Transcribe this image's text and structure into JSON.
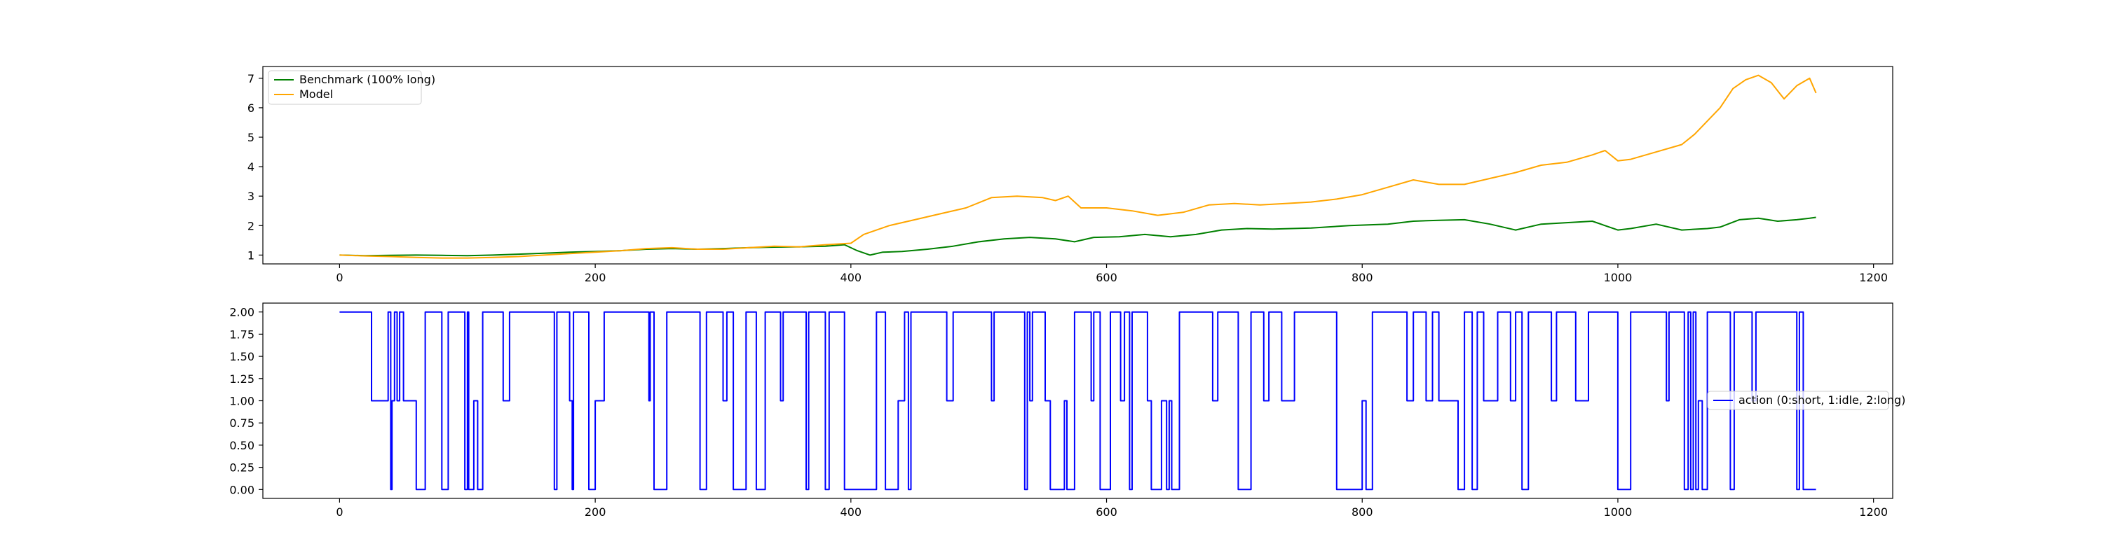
{
  "chart_data": [
    {
      "type": "line",
      "title": "",
      "xlabel": "",
      "ylabel": "",
      "xlim": [
        -60,
        1215
      ],
      "ylim": [
        0.7,
        7.4
      ],
      "xticks": [
        0,
        200,
        400,
        600,
        800,
        1000,
        1200
      ],
      "yticks": [
        1,
        2,
        3,
        4,
        5,
        6,
        7
      ],
      "grid": false,
      "legend_position": "top-left",
      "series": [
        {
          "name": "Benchmark (100% long)",
          "color": "#008000",
          "points": [
            [
              0,
              1.0
            ],
            [
              20,
              0.98
            ],
            [
              40,
              0.99
            ],
            [
              60,
              1.0
            ],
            [
              80,
              0.99
            ],
            [
              100,
              0.98
            ],
            [
              120,
              1.0
            ],
            [
              140,
              1.03
            ],
            [
              160,
              1.06
            ],
            [
              180,
              1.1
            ],
            [
              200,
              1.12
            ],
            [
              220,
              1.15
            ],
            [
              240,
              1.2
            ],
            [
              260,
              1.22
            ],
            [
              280,
              1.2
            ],
            [
              300,
              1.22
            ],
            [
              320,
              1.25
            ],
            [
              340,
              1.27
            ],
            [
              360,
              1.28
            ],
            [
              380,
              1.3
            ],
            [
              395,
              1.35
            ],
            [
              405,
              1.15
            ],
            [
              415,
              1.0
            ],
            [
              425,
              1.1
            ],
            [
              440,
              1.12
            ],
            [
              460,
              1.2
            ],
            [
              480,
              1.3
            ],
            [
              500,
              1.45
            ],
            [
              520,
              1.55
            ],
            [
              540,
              1.6
            ],
            [
              560,
              1.55
            ],
            [
              575,
              1.45
            ],
            [
              590,
              1.6
            ],
            [
              610,
              1.62
            ],
            [
              630,
              1.7
            ],
            [
              650,
              1.62
            ],
            [
              670,
              1.7
            ],
            [
              690,
              1.85
            ],
            [
              710,
              1.9
            ],
            [
              730,
              1.88
            ],
            [
              760,
              1.92
            ],
            [
              790,
              2.0
            ],
            [
              820,
              2.05
            ],
            [
              840,
              2.15
            ],
            [
              860,
              2.18
            ],
            [
              880,
              2.2
            ],
            [
              900,
              2.05
            ],
            [
              920,
              1.85
            ],
            [
              940,
              2.05
            ],
            [
              960,
              2.1
            ],
            [
              980,
              2.15
            ],
            [
              1000,
              1.85
            ],
            [
              1010,
              1.9
            ],
            [
              1030,
              2.05
            ],
            [
              1050,
              1.85
            ],
            [
              1070,
              1.9
            ],
            [
              1080,
              1.95
            ],
            [
              1095,
              2.2
            ],
            [
              1110,
              2.25
            ],
            [
              1125,
              2.15
            ],
            [
              1140,
              2.2
            ],
            [
              1150,
              2.25
            ],
            [
              1155,
              2.28
            ]
          ]
        },
        {
          "name": "Model",
          "color": "#FFA500",
          "points": [
            [
              0,
              1.0
            ],
            [
              20,
              0.97
            ],
            [
              40,
              0.95
            ],
            [
              60,
              0.92
            ],
            [
              80,
              0.9
            ],
            [
              100,
              0.9
            ],
            [
              120,
              0.92
            ],
            [
              140,
              0.95
            ],
            [
              160,
              1.0
            ],
            [
              180,
              1.05
            ],
            [
              200,
              1.1
            ],
            [
              220,
              1.15
            ],
            [
              240,
              1.22
            ],
            [
              260,
              1.25
            ],
            [
              280,
              1.2
            ],
            [
              300,
              1.2
            ],
            [
              320,
              1.25
            ],
            [
              340,
              1.3
            ],
            [
              360,
              1.28
            ],
            [
              380,
              1.35
            ],
            [
              400,
              1.4
            ],
            [
              410,
              1.7
            ],
            [
              430,
              2.0
            ],
            [
              450,
              2.2
            ],
            [
              470,
              2.4
            ],
            [
              490,
              2.6
            ],
            [
              510,
              2.95
            ],
            [
              530,
              3.0
            ],
            [
              550,
              2.95
            ],
            [
              560,
              2.85
            ],
            [
              570,
              3.0
            ],
            [
              580,
              2.6
            ],
            [
              600,
              2.6
            ],
            [
              620,
              2.5
            ],
            [
              640,
              2.35
            ],
            [
              660,
              2.45
            ],
            [
              680,
              2.7
            ],
            [
              700,
              2.75
            ],
            [
              720,
              2.7
            ],
            [
              740,
              2.75
            ],
            [
              760,
              2.8
            ],
            [
              780,
              2.9
            ],
            [
              800,
              3.05
            ],
            [
              820,
              3.3
            ],
            [
              840,
              3.55
            ],
            [
              860,
              3.4
            ],
            [
              880,
              3.4
            ],
            [
              900,
              3.6
            ],
            [
              920,
              3.8
            ],
            [
              940,
              4.05
            ],
            [
              960,
              4.15
            ],
            [
              980,
              4.4
            ],
            [
              990,
              4.55
            ],
            [
              1000,
              4.2
            ],
            [
              1010,
              4.25
            ],
            [
              1030,
              4.5
            ],
            [
              1050,
              4.75
            ],
            [
              1060,
              5.1
            ],
            [
              1080,
              6.0
            ],
            [
              1090,
              6.65
            ],
            [
              1100,
              6.95
            ],
            [
              1110,
              7.1
            ],
            [
              1120,
              6.85
            ],
            [
              1130,
              6.3
            ],
            [
              1140,
              6.75
            ],
            [
              1150,
              7.0
            ],
            [
              1155,
              6.5
            ]
          ]
        }
      ]
    },
    {
      "type": "line",
      "title": "",
      "xlabel": "",
      "ylabel": "",
      "xlim": [
        -60,
        1215
      ],
      "ylim": [
        -0.1,
        2.1
      ],
      "xticks": [
        0,
        200,
        400,
        600,
        800,
        1000,
        1200
      ],
      "yticks": [
        "0.00",
        "0.25",
        "0.50",
        "0.75",
        "1.00",
        "1.25",
        "1.50",
        "1.75",
        "2.00"
      ],
      "grid": false,
      "legend_position": "center-right",
      "series": [
        {
          "name": "action (0:short, 1:idle, 2:long)",
          "color": "#0000FF",
          "steps": [
            [
              0,
              2
            ],
            [
              25,
              1
            ],
            [
              38,
              2
            ],
            [
              40,
              0
            ],
            [
              41,
              1
            ],
            [
              43,
              2
            ],
            [
              45,
              1
            ],
            [
              47,
              2
            ],
            [
              50,
              1
            ],
            [
              60,
              0
            ],
            [
              67,
              2
            ],
            [
              80,
              0
            ],
            [
              85,
              2
            ],
            [
              98,
              0
            ],
            [
              100,
              2
            ],
            [
              101,
              0
            ],
            [
              105,
              1
            ],
            [
              108,
              0
            ],
            [
              112,
              2
            ],
            [
              128,
              1
            ],
            [
              133,
              2
            ],
            [
              168,
              0
            ],
            [
              170,
              2
            ],
            [
              180,
              1
            ],
            [
              182,
              0
            ],
            [
              183,
              2
            ],
            [
              195,
              0
            ],
            [
              200,
              1
            ],
            [
              207,
              2
            ],
            [
              242,
              1
            ],
            [
              243,
              2
            ],
            [
              246,
              0
            ],
            [
              256,
              2
            ],
            [
              282,
              0
            ],
            [
              287,
              2
            ],
            [
              300,
              1
            ],
            [
              303,
              2
            ],
            [
              308,
              0
            ],
            [
              318,
              2
            ],
            [
              326,
              0
            ],
            [
              333,
              2
            ],
            [
              345,
              1
            ],
            [
              347,
              2
            ],
            [
              365,
              0
            ],
            [
              367,
              2
            ],
            [
              380,
              0
            ],
            [
              383,
              2
            ],
            [
              395,
              0
            ],
            [
              420,
              2
            ],
            [
              427,
              0
            ],
            [
              437,
              1
            ],
            [
              442,
              2
            ],
            [
              445,
              0
            ],
            [
              447,
              2
            ],
            [
              475,
              1
            ],
            [
              480,
              2
            ],
            [
              510,
              1
            ],
            [
              512,
              2
            ],
            [
              536,
              0
            ],
            [
              538,
              2
            ],
            [
              540,
              1
            ],
            [
              542,
              2
            ],
            [
              552,
              1
            ],
            [
              556,
              0
            ],
            [
              567,
              1
            ],
            [
              569,
              0
            ],
            [
              575,
              2
            ],
            [
              588,
              1
            ],
            [
              590,
              2
            ],
            [
              595,
              0
            ],
            [
              603,
              2
            ],
            [
              611,
              1
            ],
            [
              614,
              2
            ],
            [
              618,
              0
            ],
            [
              620,
              2
            ],
            [
              632,
              1
            ],
            [
              635,
              0
            ],
            [
              643,
              1
            ],
            [
              647,
              0
            ],
            [
              649,
              1
            ],
            [
              651,
              0
            ],
            [
              657,
              2
            ],
            [
              683,
              1
            ],
            [
              687,
              2
            ],
            [
              703,
              0
            ],
            [
              713,
              2
            ],
            [
              723,
              1
            ],
            [
              727,
              2
            ],
            [
              737,
              1
            ],
            [
              747,
              2
            ],
            [
              780,
              0
            ],
            [
              800,
              1
            ],
            [
              803,
              0
            ],
            [
              808,
              2
            ],
            [
              835,
              1
            ],
            [
              840,
              2
            ],
            [
              850,
              1
            ],
            [
              855,
              2
            ],
            [
              860,
              1
            ],
            [
              875,
              0
            ],
            [
              880,
              2
            ],
            [
              886,
              0
            ],
            [
              890,
              2
            ],
            [
              895,
              1
            ],
            [
              906,
              2
            ],
            [
              916,
              1
            ],
            [
              920,
              2
            ],
            [
              925,
              0
            ],
            [
              930,
              2
            ],
            [
              948,
              1
            ],
            [
              952,
              2
            ],
            [
              967,
              1
            ],
            [
              977,
              2
            ],
            [
              1000,
              0
            ],
            [
              1010,
              2
            ],
            [
              1038,
              1
            ],
            [
              1040,
              2
            ],
            [
              1052,
              0
            ],
            [
              1055,
              2
            ],
            [
              1057,
              0
            ],
            [
              1059,
              2
            ],
            [
              1061,
              0
            ],
            [
              1063,
              1
            ],
            [
              1066,
              0
            ],
            [
              1070,
              2
            ],
            [
              1088,
              0
            ],
            [
              1091,
              2
            ],
            [
              1105,
              1
            ],
            [
              1108,
              2
            ],
            [
              1140,
              0
            ],
            [
              1142,
              2
            ],
            [
              1145,
              0
            ],
            [
              1155,
              0
            ]
          ]
        }
      ]
    }
  ]
}
